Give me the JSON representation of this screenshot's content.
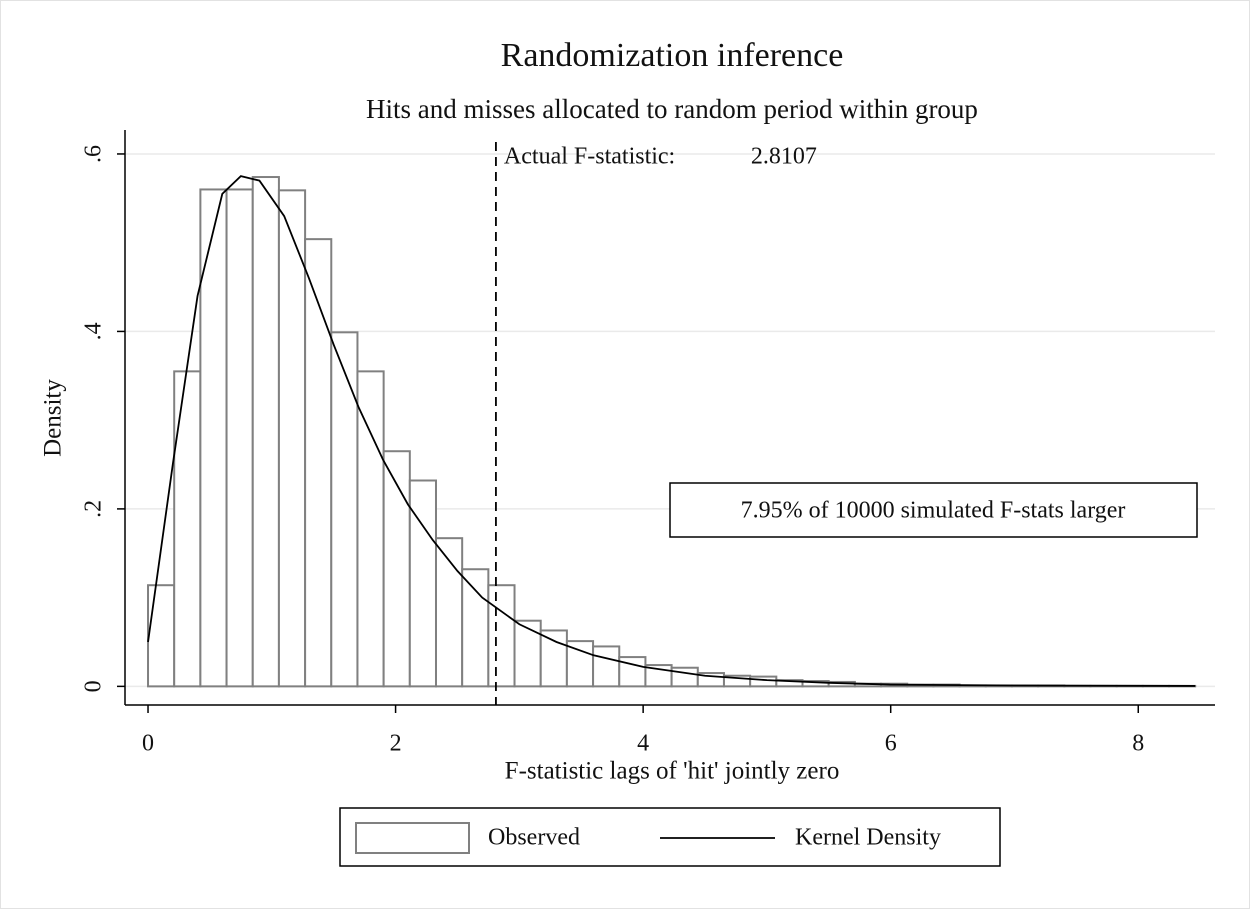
{
  "chart_data": {
    "type": "histogram",
    "title": "Randomization inference",
    "subtitle": "Hits and misses allocated to random period within group",
    "xlabel": "F-statistic lags of 'hit' jointly zero",
    "ylabel": "Density",
    "bins": [
      0,
      0.2115,
      0.423,
      0.6345,
      0.846,
      1.0575,
      1.269,
      1.4805,
      1.692,
      1.9035,
      2.115,
      2.3265,
      2.538,
      2.7495,
      2.961,
      3.1725,
      3.384,
      3.5955,
      3.807,
      4.0185,
      4.23,
      4.4415,
      4.653,
      4.8645,
      5.076,
      5.2875,
      5.499,
      5.7105,
      5.922,
      6.1335,
      6.345,
      6.5565,
      6.768,
      6.9795,
      7.191,
      7.4025,
      7.614,
      7.8255,
      8.037,
      8.2485,
      8.46
    ],
    "series": [
      {
        "name": "Observed",
        "color": "#ffffff",
        "edgecolor": "#808080",
        "values": [
          0.114,
          0.355,
          0.56,
          0.56,
          0.574,
          0.559,
          0.504,
          0.399,
          0.355,
          0.265,
          0.232,
          0.167,
          0.132,
          0.114,
          0.074,
          0.063,
          0.051,
          0.045,
          0.033,
          0.024,
          0.021,
          0.015,
          0.012,
          0.011,
          0.007,
          0.006,
          0.005,
          0.003,
          0.003,
          0.002,
          0.002,
          0.001,
          0.001,
          0.001,
          0.001,
          0.0005,
          0.0005,
          0.0005,
          0.0005,
          0.0005
        ]
      }
    ],
    "density": {
      "name": "Kernel Density",
      "color": "#000000",
      "x": [
        0,
        0.2,
        0.4,
        0.6,
        0.75,
        0.9,
        1.1,
        1.3,
        1.5,
        1.7,
        1.9,
        2.1,
        2.3,
        2.5,
        2.7,
        3.0,
        3.3,
        3.6,
        4.0,
        4.5,
        5.0,
        5.5,
        6.0,
        7.0,
        8.46
      ],
      "y": [
        0.05,
        0.25,
        0.44,
        0.555,
        0.575,
        0.57,
        0.53,
        0.46,
        0.385,
        0.315,
        0.255,
        0.205,
        0.165,
        0.13,
        0.1,
        0.07,
        0.05,
        0.035,
        0.022,
        0.012,
        0.007,
        0.004,
        0.002,
        0.001,
        0.0005
      ]
    },
    "reference_line": {
      "label": "Actual F-statistic:",
      "value": 2.8107
    },
    "annotation": "7.95% of 10000 simulated F-stats larger",
    "xlim": [
      -0.186,
      8.62
    ],
    "ylim": [
      -0.021,
      0.627
    ],
    "xticks": [
      0,
      2,
      4,
      6,
      8
    ],
    "yticks": [
      0,
      {
        "value": 0.2,
        "label": ".2"
      },
      {
        "value": 0.4,
        "label": ".4"
      },
      {
        "value": 0.6,
        "label": ".6"
      }
    ],
    "grid": true
  }
}
